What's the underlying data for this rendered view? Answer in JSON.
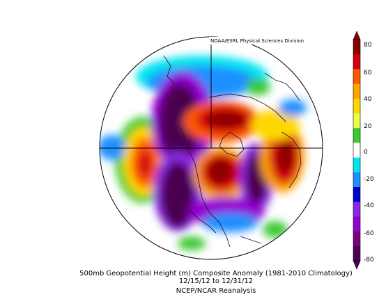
{
  "credit": "NOAA/ESRL Physical Sciences Division",
  "caption": {
    "line1": "500mb Geopotential Height (m) Composite Anomaly (1981-2010 Climatology)",
    "line2": "12/15/12  to 12/31/12",
    "line3": "NCEP/NCAR Reanalysis"
  },
  "colorbar": {
    "ticks": [
      "80",
      "60",
      "40",
      "20",
      "0",
      "-20",
      "-40",
      "-60",
      "-80"
    ],
    "colors": [
      "#8b0000",
      "#d4000f",
      "#ff5a00",
      "#ffa500",
      "#ffd700",
      "#e8ff4a",
      "#3cc832",
      "#ffffff",
      "#00e5ee",
      "#1e90ff",
      "#0000cd",
      "#8a2be2",
      "#9400d3",
      "#7b0080",
      "#4b0050"
    ]
  }
}
